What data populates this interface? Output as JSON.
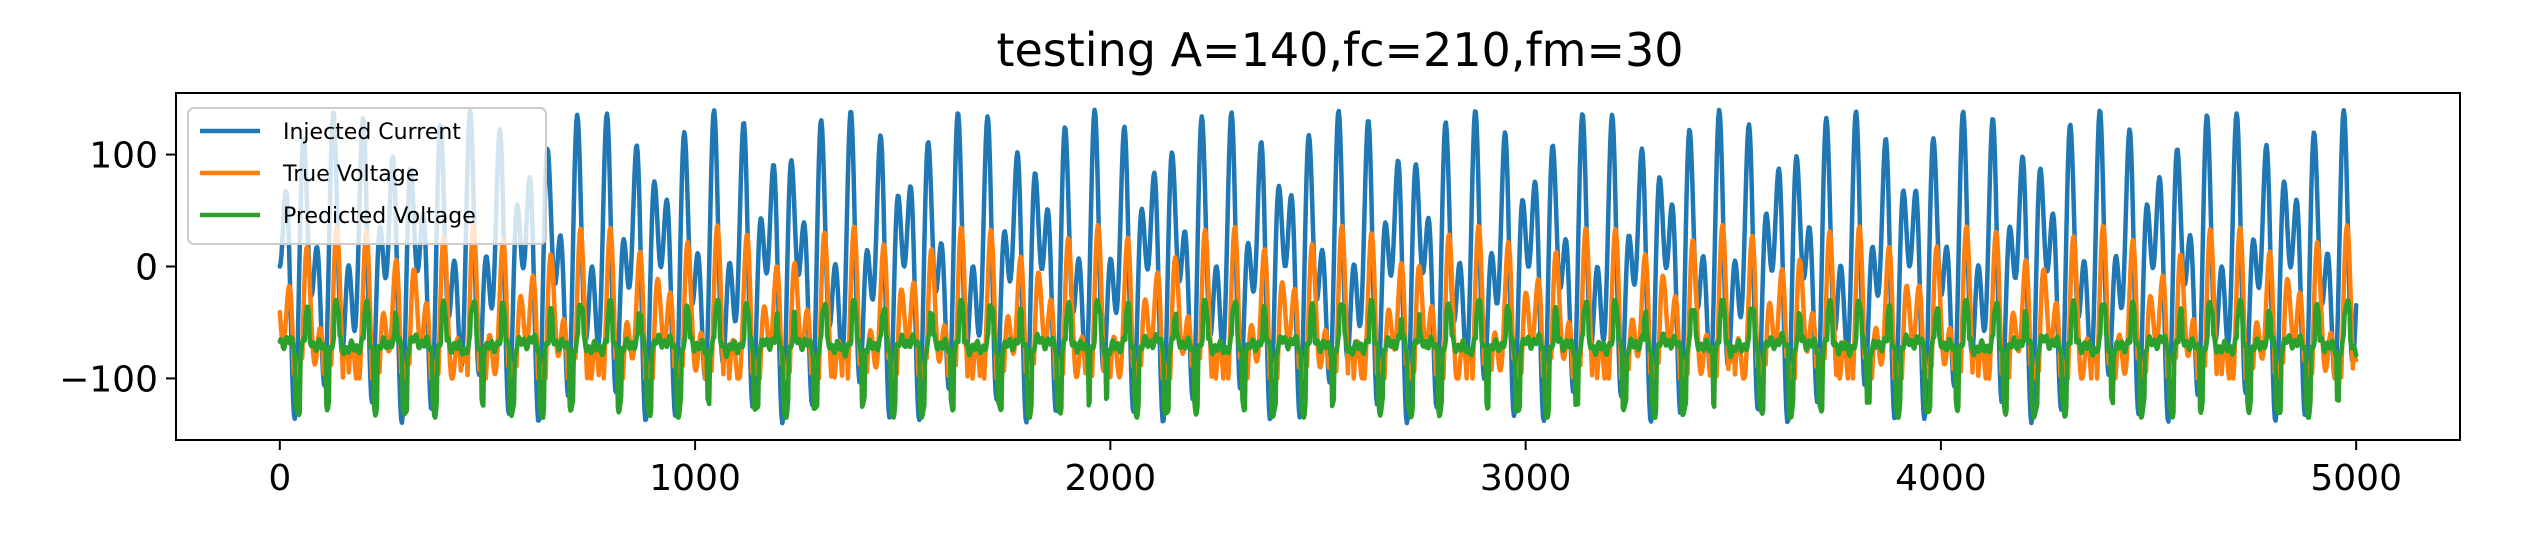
{
  "chart_data": {
    "type": "line",
    "title": "testing A=140,fc=210,fm=30",
    "xlabel": "",
    "ylabel": "",
    "xlim": [
      -250,
      5250
    ],
    "ylim": [
      -155,
      155
    ],
    "x_ticks": [
      0,
      1000,
      2000,
      3000,
      4000,
      5000
    ],
    "x_tick_labels": [
      "0",
      "1000",
      "2000",
      "3000",
      "4000",
      "5000"
    ],
    "y_ticks": [
      100,
      0,
      -100
    ],
    "y_tick_labels": [
      "100",
      "0",
      "−100"
    ],
    "grid": false,
    "legend_position": "upper-left",
    "x_range": [
      0,
      5000
    ],
    "series": [
      {
        "name": "Injected Current",
        "color": "#1f77b4",
        "model": {
          "amplitude": 140,
          "carrier_period": 47,
          "modulation_period": 167,
          "offset": 0
        },
        "min": -140,
        "max": 140
      },
      {
        "name": "True Voltage",
        "color": "#ff7f0e",
        "model": {
          "baseline": -68,
          "lag": 8,
          "gain": 0.75,
          "floor": -68,
          "undershoot": -100,
          "ceiling": 47
        },
        "min": -100,
        "max": 47
      },
      {
        "name": "Predicted Voltage",
        "color": "#2ca02c",
        "model": {
          "baseline": -70,
          "lag": 8,
          "spike_max": -30,
          "spike_min": -135
        },
        "min": -135,
        "max": -30
      }
    ]
  }
}
